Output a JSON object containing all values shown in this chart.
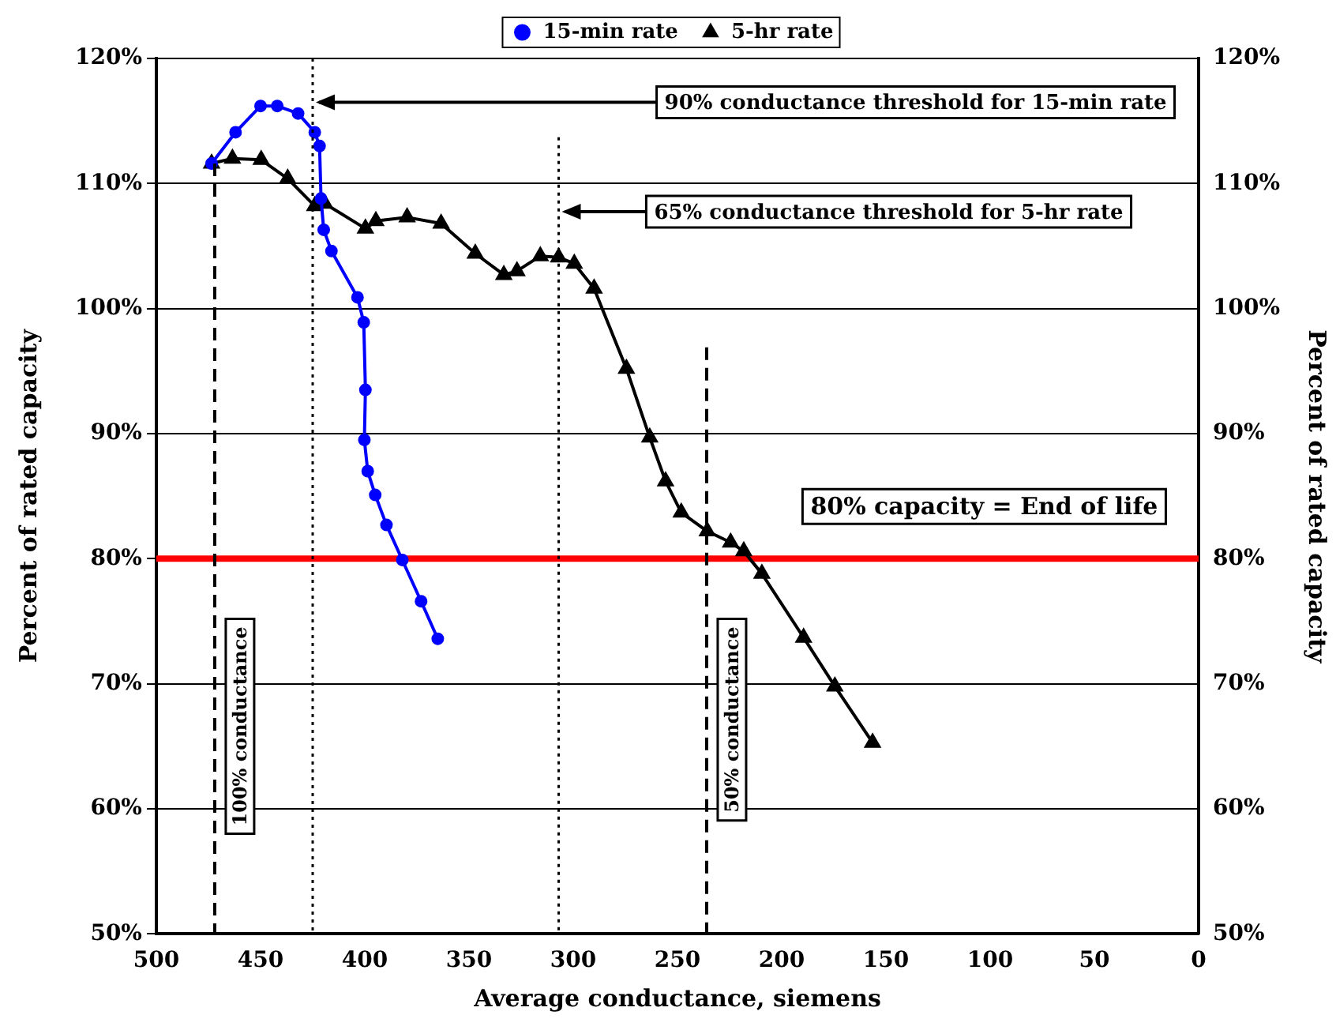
{
  "chart_data": {
    "type": "line",
    "xlabel": "Average conductance, siemens",
    "ylabel": "Percent of rated capacity",
    "y2label": "Percent of rated capacity",
    "xlim": [
      500,
      0
    ],
    "xticks": [
      500,
      450,
      400,
      350,
      300,
      250,
      200,
      150,
      100,
      50,
      0
    ],
    "ylim": [
      50,
      120
    ],
    "yticks": [
      {
        "value": 50,
        "label": "50%"
      },
      {
        "value": 60,
        "label": "60%"
      },
      {
        "value": 70,
        "label": "70%"
      },
      {
        "value": 80,
        "label": "80%"
      },
      {
        "value": 90,
        "label": "90%"
      },
      {
        "value": 100,
        "label": "100%"
      },
      {
        "value": 110,
        "label": "110%"
      },
      {
        "value": 120,
        "label": "120%"
      }
    ],
    "y2lim": [
      50,
      120
    ],
    "y2ticks": [
      {
        "value": 50,
        "label": "50%"
      },
      {
        "value": 60,
        "label": "60%"
      },
      {
        "value": 70,
        "label": "70%"
      },
      {
        "value": 80,
        "label": "80%"
      },
      {
        "value": 90,
        "label": "90%"
      },
      {
        "value": 100,
        "label": "100%"
      },
      {
        "value": 110,
        "label": "110%"
      },
      {
        "value": 120,
        "label": "120%"
      }
    ],
    "grid": "y",
    "legend": "top",
    "line_style": "solid",
    "series": [
      {
        "name": "15-min rate",
        "color": "#0000ff",
        "marker": "circle",
        "x": [
          473.5,
          462,
          450,
          442,
          432,
          424,
          421.7,
          421,
          419.7,
          416,
          403.5,
          400.5,
          399.7,
          400.2,
          398.6,
          395,
          389.6,
          382,
          373,
          365
        ],
        "values": [
          111.6,
          114.1,
          116.2,
          116.2,
          115.6,
          114.1,
          113,
          108.8,
          106.3,
          104.6,
          100.9,
          98.9,
          93.5,
          89.5,
          87,
          85.1,
          82.7,
          79.9,
          76.6,
          73.6
        ]
      },
      {
        "name": "5-hr rate",
        "color": "#000000",
        "marker": "triangle",
        "x": [
          473.5,
          463.5,
          449.7,
          437,
          424,
          419.2,
          399.7,
          394.7,
          379.7,
          363.4,
          347,
          333.3,
          327,
          315.8,
          307,
          299.5,
          290,
          274.5,
          263.3,
          255.7,
          248.2,
          235.7,
          224.5,
          218.2,
          209.5,
          189.5,
          174.5,
          156.4
        ],
        "values": [
          111.6,
          112,
          111.9,
          110.4,
          108.2,
          108.4,
          106.4,
          107,
          107.3,
          106.8,
          104.4,
          102.7,
          103,
          104.2,
          104.1,
          103.6,
          101.6,
          95.2,
          89.7,
          86.2,
          83.7,
          82.2,
          81.3,
          80.6,
          78.8,
          73.7,
          69.8,
          65.3
        ]
      }
    ],
    "ref_lines": [
      {
        "axis": "y",
        "value": 80,
        "label": "80% capacity = End of life",
        "color": "#ff0000",
        "line_style": "solid"
      },
      {
        "axis": "x",
        "value": 472,
        "label": "100% conductance",
        "color": "#000000",
        "line_style": "dashed"
      },
      {
        "axis": "x",
        "value": 425,
        "label": "90% conductance threshold for 15-min rate",
        "color": "#000000",
        "line_style": "dotted"
      },
      {
        "axis": "x",
        "value": 307,
        "label": "65% conductance threshold for 5-hr rate",
        "color": "#000000",
        "line_style": "dotted"
      },
      {
        "axis": "x",
        "value": 236,
        "label": "50% conductance",
        "color": "#000000",
        "line_style": "dashed"
      }
    ]
  }
}
